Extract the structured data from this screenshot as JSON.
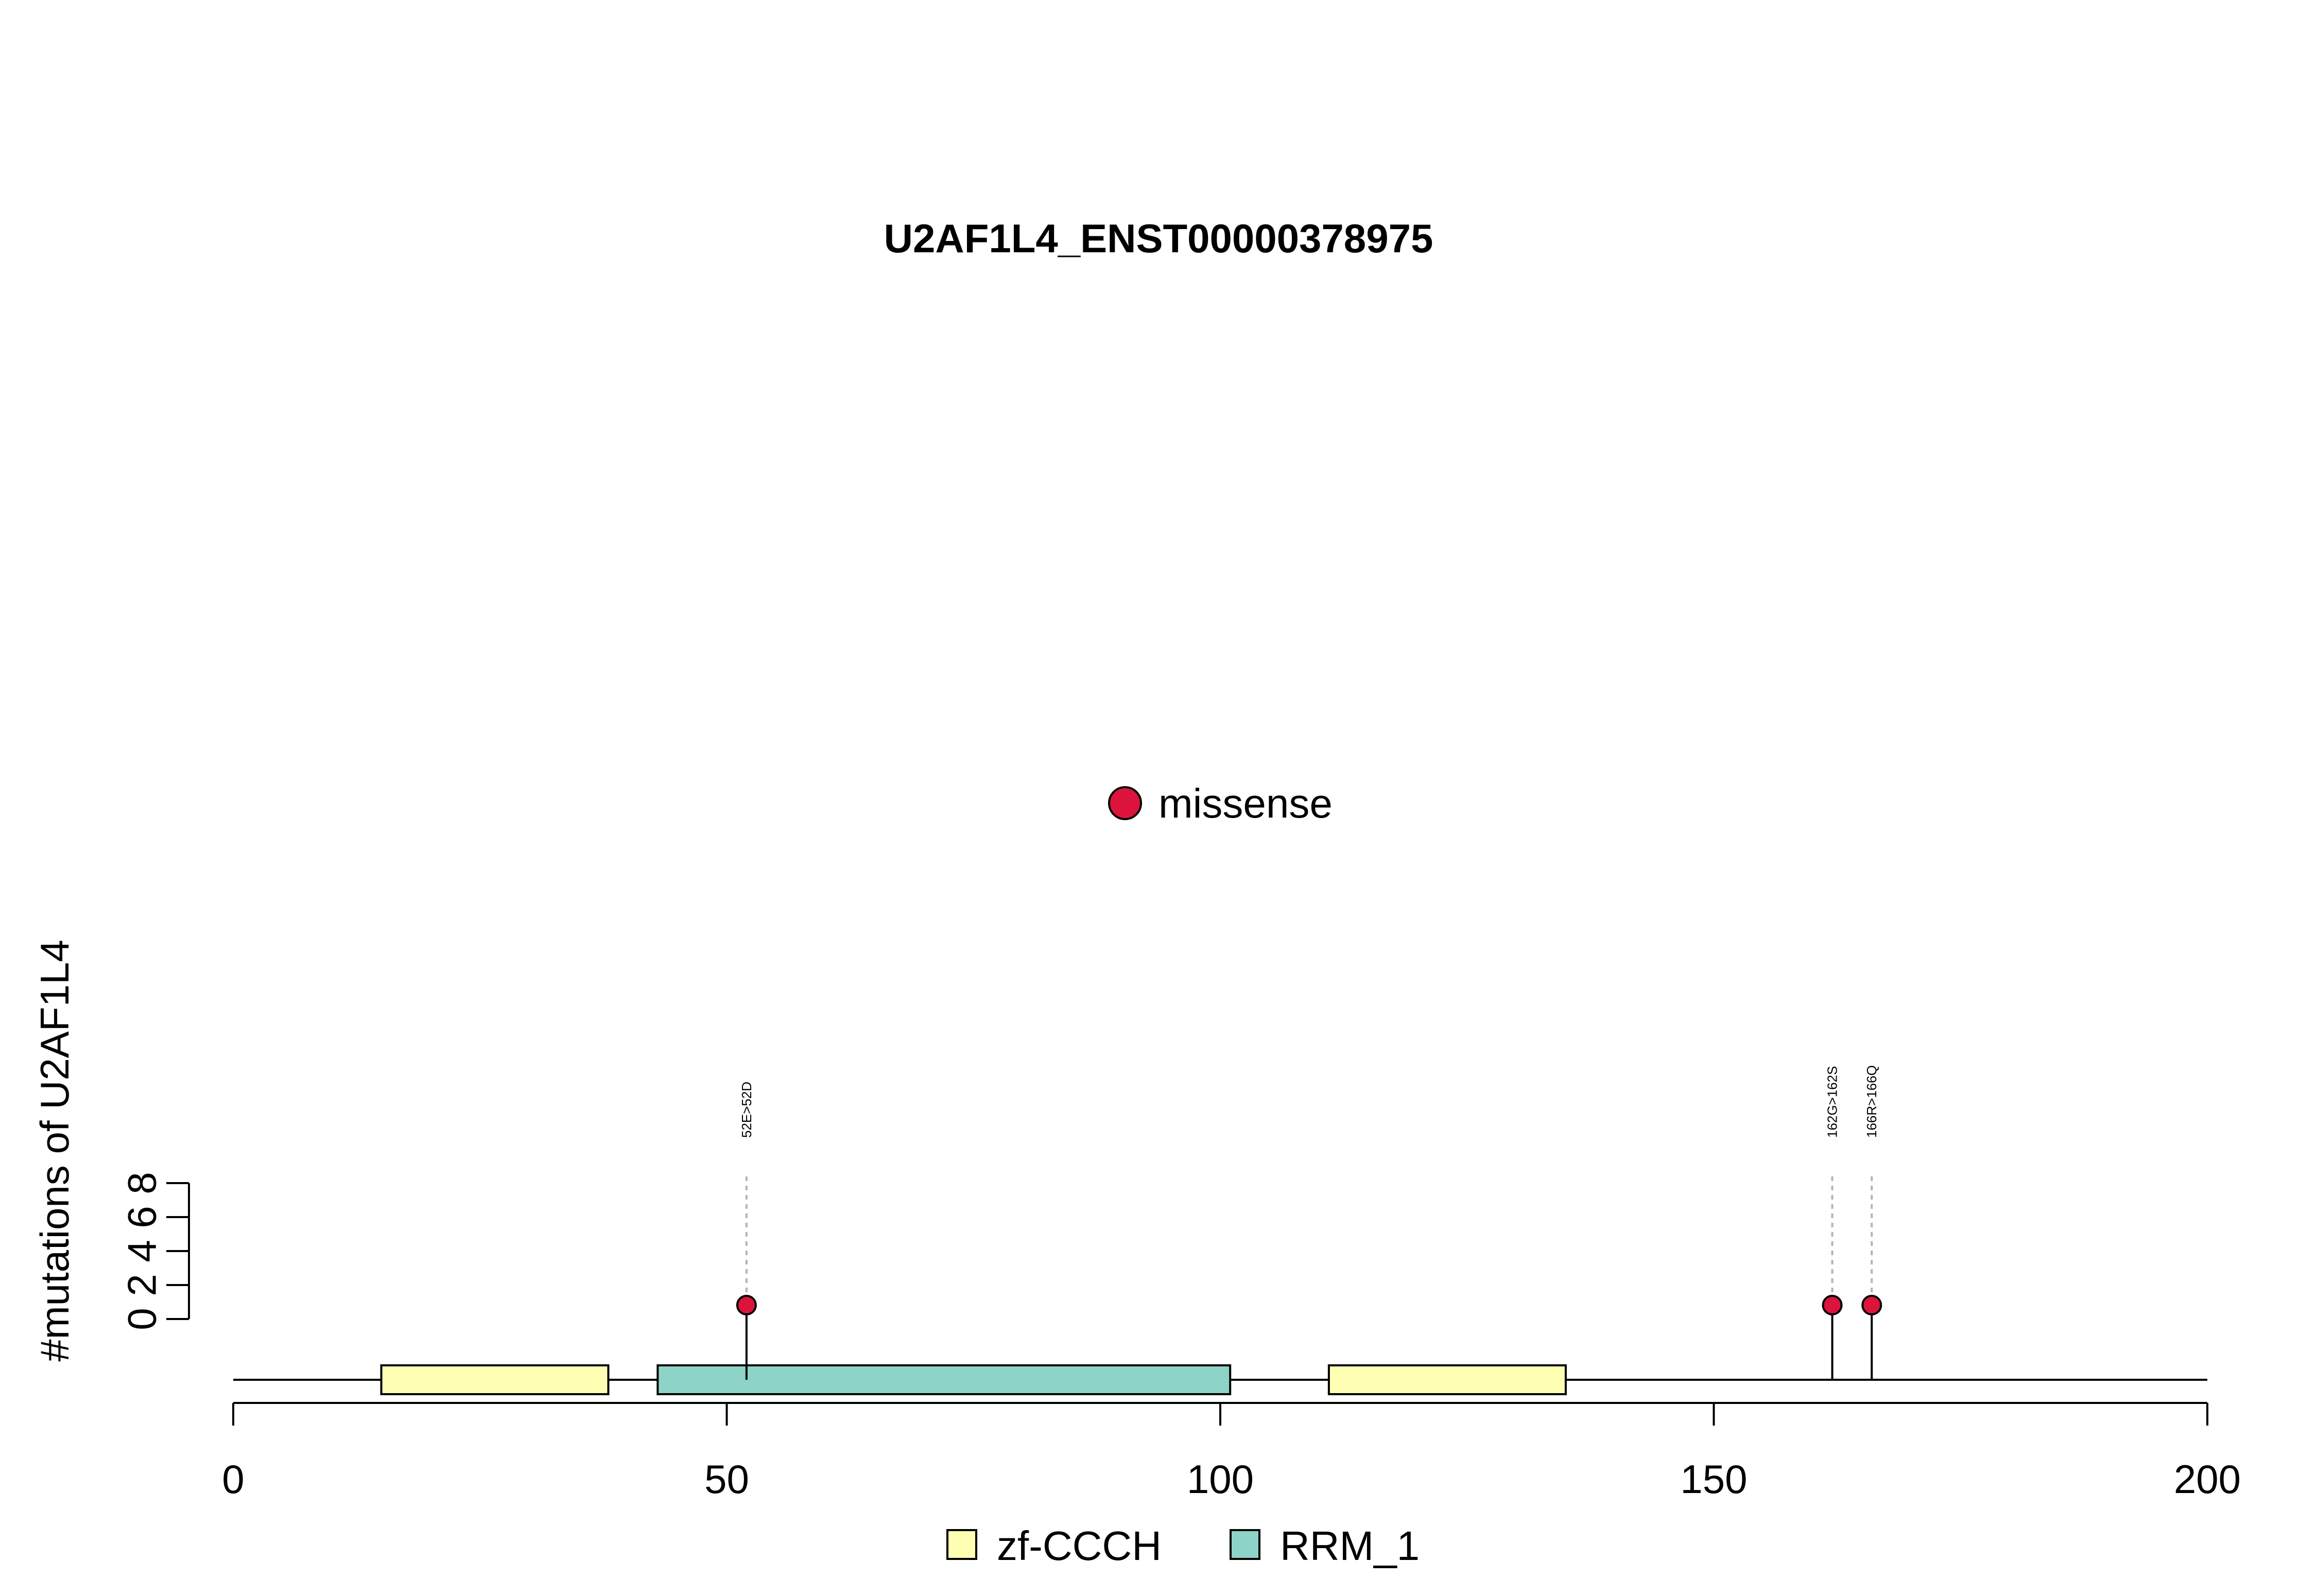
{
  "chart_data": {
    "type": "lollipop",
    "title": "U2AF1L4_ENST00000378975",
    "ylabel": "#mutations of U2AF1L4",
    "xlabel": "",
    "xlim": [
      0,
      200
    ],
    "x_ticks": [
      0,
      50,
      100,
      150,
      200
    ],
    "ylim": [
      0,
      8
    ],
    "y_ticks": [
      0,
      2,
      4,
      6,
      8
    ],
    "protein_length": 200,
    "domains": [
      {
        "name": "zf-CCCH",
        "start": 15,
        "end": 38,
        "color": "#ffffb3"
      },
      {
        "name": "RRM_1",
        "start": 43,
        "end": 101,
        "color": "#8dd3c7"
      },
      {
        "name": "zf-CCCH",
        "start": 111,
        "end": 135,
        "color": "#ffffb3"
      }
    ],
    "mutations": [
      {
        "label": "52E>52D",
        "position": 52,
        "count": 1,
        "type": "missense"
      },
      {
        "label": "162G>162S",
        "position": 162,
        "count": 1,
        "type": "missense"
      },
      {
        "label": "166R>166Q",
        "position": 166,
        "count": 1,
        "type": "missense"
      }
    ],
    "mutation_legend": [
      {
        "label": "missense",
        "color": "#dc143c"
      }
    ],
    "domain_legend": [
      {
        "label": "zf-CCCH",
        "color": "#ffffb3"
      },
      {
        "label": "RRM_1",
        "color": "#8dd3c7"
      }
    ],
    "colors": {
      "missense": "#dc143c",
      "backbone": "#000000",
      "guide": "#b3b3b3"
    }
  }
}
